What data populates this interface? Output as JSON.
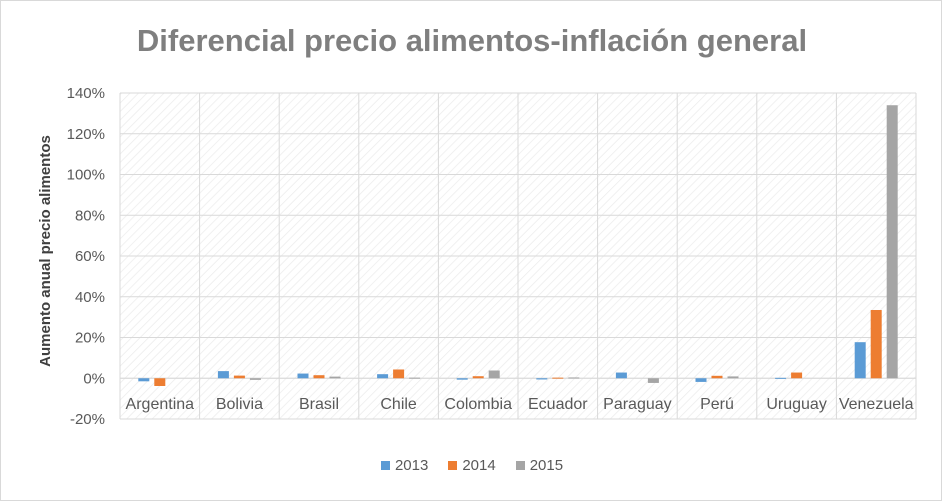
{
  "chart_data": {
    "type": "bar",
    "title": "Diferencial precio alimentos-inflación general",
    "ylabel": "Aumento anual precio alimentos",
    "xlabel": "",
    "ylim": [
      -20,
      140
    ],
    "ytick_step": 20,
    "ytick_suffix": "%",
    "grid": true,
    "legend_position": "bottom",
    "categories": [
      "Argentina",
      "Bolivia",
      "Brasil",
      "Chile",
      "Colombia",
      "Ecuador",
      "Paraguay",
      "Perú",
      "Uruguay",
      "Venezuela"
    ],
    "series": [
      {
        "name": "2013",
        "color": "#5b9bd5",
        "values": [
          -1.5,
          3.5,
          2.3,
          2,
          -0.7,
          -0.6,
          2.8,
          -1.8,
          0.2,
          17.7
        ]
      },
      {
        "name": "2014",
        "color": "#ed7d31",
        "values": [
          -3.8,
          1.3,
          1.5,
          4.3,
          1,
          0.3,
          0,
          1.2,
          2.8,
          33.5
        ]
      },
      {
        "name": "2015",
        "color": "#a5a5a5",
        "values": [
          0,
          -0.8,
          0.8,
          0.3,
          3.8,
          0.4,
          -2.3,
          0.9,
          0,
          134
        ]
      }
    ]
  }
}
